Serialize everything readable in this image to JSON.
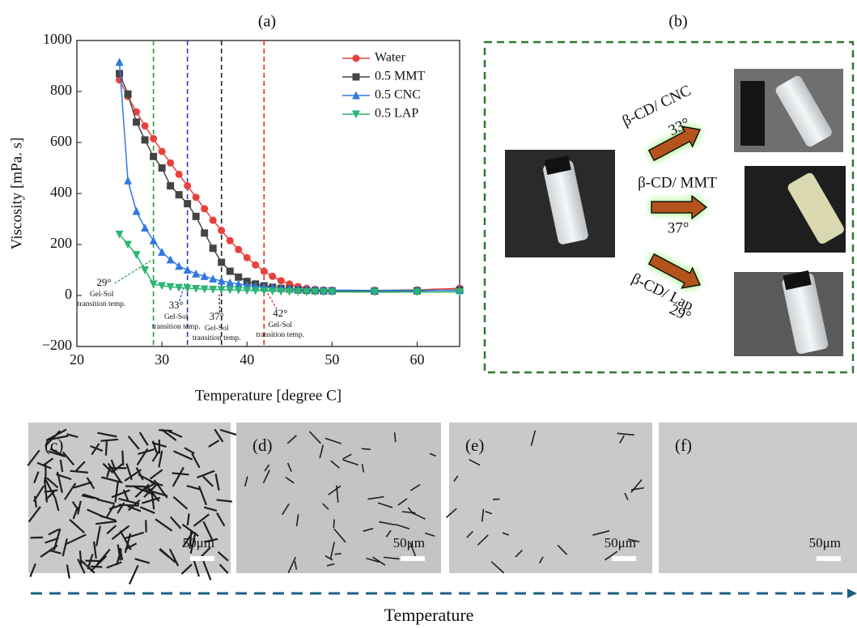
{
  "chart_data": {
    "type": "line",
    "title": "(a)",
    "x_label": "Temperature [degree C]",
    "y_label": "Viscosity [mPa. s]",
    "x": [
      25,
      26,
      27,
      28,
      29,
      30,
      31,
      32,
      33,
      34,
      35,
      36,
      37,
      38,
      39,
      40,
      41,
      42,
      43,
      44,
      45,
      46,
      47,
      48,
      49,
      50,
      55,
      60,
      65
    ],
    "series": [
      {
        "name": "Water",
        "color": "#e8413c",
        "marker": "circle",
        "values": [
          845,
          780,
          720,
          665,
          615,
          565,
          520,
          475,
          430,
          385,
          340,
          295,
          255,
          215,
          180,
          148,
          120,
          95,
          75,
          58,
          45,
          35,
          28,
          24,
          21,
          20,
          20,
          22,
          28
        ]
      },
      {
        "name": "0.5 MMT",
        "color": "#444444",
        "marker": "square",
        "values": [
          870,
          790,
          680,
          610,
          545,
          500,
          430,
          395,
          360,
          310,
          245,
          185,
          130,
          95,
          72,
          55,
          45,
          38,
          32,
          28,
          25,
          22,
          20,
          19,
          18,
          18,
          17,
          18,
          22
        ]
      },
      {
        "name": "0.5 CNC",
        "color": "#2f78e0",
        "marker": "triangle-up",
        "values": [
          915,
          450,
          330,
          265,
          215,
          170,
          140,
          115,
          100,
          85,
          75,
          65,
          57,
          50,
          45,
          40,
          36,
          33,
          30,
          28,
          26,
          25,
          24,
          23,
          22,
          21,
          20,
          20,
          20
        ]
      },
      {
        "name": "0.5 LAP",
        "color": "#2bb673",
        "marker": "triangle-down",
        "values": [
          240,
          200,
          160,
          100,
          45,
          38,
          34,
          31,
          29,
          27,
          25,
          24,
          23,
          22,
          21,
          20,
          19,
          18,
          17,
          16,
          15,
          15,
          14,
          14,
          14,
          14,
          13,
          13,
          14
        ]
      }
    ],
    "xlim": [
      20,
      65
    ],
    "xticks": [
      20,
      30,
      40,
      50,
      60
    ],
    "ylim": [
      -200,
      1000
    ],
    "yticks": [
      {
        "value": -200,
        "label": "−200"
      },
      0,
      200,
      400,
      600,
      800,
      1000
    ],
    "legend": "top-right",
    "annotations": [
      {
        "x": 29,
        "color": "#2e9a3a",
        "label": "29°",
        "note": [
          "Gel-Sol",
          "transition temp."
        ]
      },
      {
        "x": 33,
        "color": "#2a3fb0",
        "label": "33°",
        "note": [
          "Gel-Sol",
          "transition temp."
        ]
      },
      {
        "x": 37,
        "color": "#222222",
        "label": "37°",
        "note": [
          "Gel-Sol",
          "transition temp."
        ]
      },
      {
        "x": 42,
        "color": "#e02b2b",
        "label": "42°",
        "note": [
          "Gel-Sol",
          "transition temp."
        ]
      }
    ]
  },
  "panel_b": {
    "label": "(b)",
    "arrows": [
      {
        "text": "β-CD/ CNC",
        "angle": "33°"
      },
      {
        "text": "β-CD/ MMT",
        "angle": "37°"
      },
      {
        "text": "β-CD/ Lap",
        "angle": "29°"
      }
    ]
  },
  "micrographs": [
    {
      "label": "(c)",
      "scale": "50μm"
    },
    {
      "label": "(d)",
      "scale": "50μm"
    },
    {
      "label": "(e)",
      "scale": "50μm"
    },
    {
      "label": "(f)",
      "scale": "50μm"
    }
  ],
  "footer": {
    "label": "Temperature"
  }
}
